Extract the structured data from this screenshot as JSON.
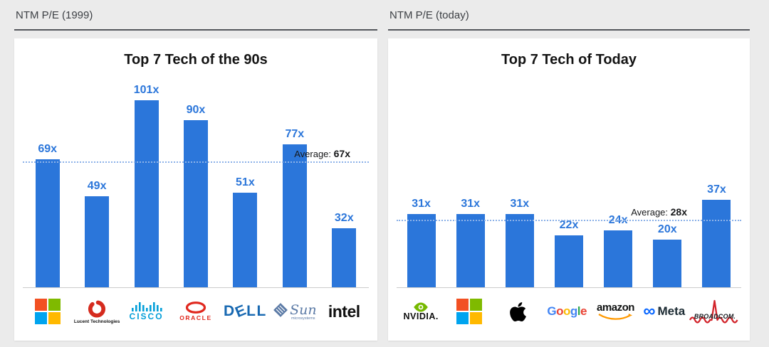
{
  "colors": {
    "bar_blue": "#2b76da",
    "average_line_blue": "#8db2e8",
    "page_background": "#ebebeb",
    "panel_background": "#ffffff"
  },
  "left_section": {
    "header": "NTM P/E (1999)"
  },
  "right_section": {
    "header": "NTM P/E (today)"
  },
  "chart_data": [
    {
      "type": "bar",
      "title": "Top 7 Tech of the 90s",
      "categories": [
        "Microsoft",
        "Lucent Technologies",
        "Cisco",
        "Oracle",
        "Dell",
        "Sun Microsystems",
        "Intel"
      ],
      "values": [
        69,
        49,
        101,
        90,
        51,
        77,
        32
      ],
      "value_labels": [
        "69x",
        "49x",
        "101x",
        "90x",
        "51x",
        "77x",
        "32x"
      ],
      "average": 67,
      "average_prefix": "Average: ",
      "average_value_label": "67x",
      "bar_color": "#2b76da",
      "value_label_color": "#2b76da",
      "average_line_color": "#8db2e8",
      "xlabel": "",
      "ylabel": "",
      "ylim": [
        0,
        115
      ],
      "grid": false,
      "legend": false
    },
    {
      "type": "bar",
      "title": "Top 7 Tech of Today",
      "categories": [
        "NVIDIA",
        "Microsoft",
        "Apple",
        "Google",
        "Amazon",
        "Meta",
        "Broadcom"
      ],
      "values": [
        31,
        31,
        31,
        22,
        24,
        20,
        37
      ],
      "value_labels": [
        "31x",
        "31x",
        "31x",
        "22x",
        "24x",
        "20x",
        "37x"
      ],
      "average": 28,
      "average_prefix": "Average: ",
      "average_value_label": "28x",
      "bar_color": "#2b76da",
      "value_label_color": "#2b76da",
      "average_line_color": "#8db2e8",
      "xlabel": "",
      "ylabel": "",
      "ylim": [
        0,
        90
      ],
      "grid": false,
      "legend": false
    }
  ],
  "logos": {
    "microsoft": {
      "colors": [
        "#f25022",
        "#7fba00",
        "#00a4ef",
        "#ffb900"
      ]
    },
    "lucent": {
      "label": "Lucent Technologies",
      "ring_color": "#d52b1e"
    },
    "cisco": {
      "label": "CISCO",
      "color": "#049fd9"
    },
    "oracle": {
      "label": "ORACLE",
      "color": "#e0281e"
    },
    "dell": {
      "letters": [
        "D",
        "E",
        "L",
        "L"
      ],
      "color": "#1768b1"
    },
    "sun": {
      "label": "Sun",
      "sublabel": "microsystems",
      "color": "#5b7aa6"
    },
    "intel": {
      "label": "intel",
      "color": "#0f0f0f"
    },
    "nvidia": {
      "label": "NVIDIA.",
      "icon_color": "#76b900"
    },
    "apple": {
      "color": "#000000"
    },
    "google": {
      "letters": [
        {
          "ch": "G",
          "color": "#4285F4"
        },
        {
          "ch": "o",
          "color": "#EA4335"
        },
        {
          "ch": "o",
          "color": "#FBBC05"
        },
        {
          "ch": "g",
          "color": "#4285F4"
        },
        {
          "ch": "l",
          "color": "#34A853"
        },
        {
          "ch": "e",
          "color": "#EA4335"
        }
      ]
    },
    "amazon": {
      "label": "amazon",
      "text_color": "#0f1111",
      "smile_color": "#ff9900"
    },
    "meta": {
      "infinity": "∞",
      "label": "Meta",
      "icon_color": "#0866ff",
      "text_color": "#1c2b33"
    },
    "broadcom": {
      "label": "BROADCOM.",
      "text_color": "#16181d",
      "wave_color": "#d2232a"
    }
  }
}
